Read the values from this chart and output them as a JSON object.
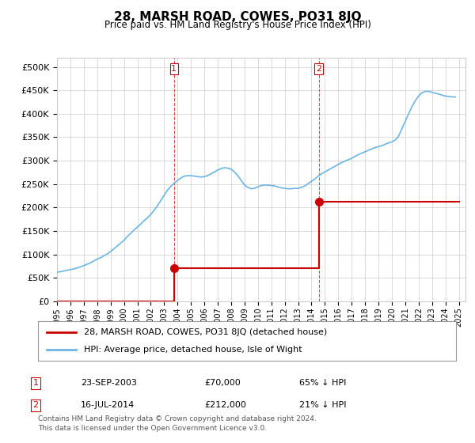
{
  "title": "28, MARSH ROAD, COWES, PO31 8JQ",
  "subtitle": "Price paid vs. HM Land Registry's House Price Index (HPI)",
  "yticks": [
    0,
    50000,
    100000,
    150000,
    200000,
    250000,
    300000,
    350000,
    400000,
    450000,
    500000
  ],
  "ylim": [
    0,
    520000
  ],
  "xlim_start": 1995.0,
  "xlim_end": 2025.5,
  "transaction1_date": 2003.73,
  "transaction1_price": 70000,
  "transaction1_label": "1",
  "transaction1_date_str": "23-SEP-2003",
  "transaction1_price_str": "£70,000",
  "transaction1_pct_str": "65% ↓ HPI",
  "transaction2_date": 2014.54,
  "transaction2_price": 212000,
  "transaction2_label": "2",
  "transaction2_date_str": "16-JUL-2014",
  "transaction2_price_str": "£212,000",
  "transaction2_pct_str": "21% ↓ HPI",
  "hpi_color": "#6cb4e4",
  "price_color": "#cc0000",
  "vline_color": "#cc0000",
  "background_color": "#ffffff",
  "grid_color": "#cccccc",
  "legend_label_price": "28, MARSH ROAD, COWES, PO31 8JQ (detached house)",
  "legend_label_hpi": "HPI: Average price, detached house, Isle of Wight",
  "footer_text": "Contains HM Land Registry data © Crown copyright and database right 2024.\nThis data is licensed under the Open Government Licence v3.0.",
  "hpi_x": [
    1995.0,
    1995.25,
    1995.5,
    1995.75,
    1996.0,
    1996.25,
    1996.5,
    1996.75,
    1997.0,
    1997.25,
    1997.5,
    1997.75,
    1998.0,
    1998.25,
    1998.5,
    1998.75,
    1999.0,
    1999.25,
    1999.5,
    1999.75,
    2000.0,
    2000.25,
    2000.5,
    2000.75,
    2001.0,
    2001.25,
    2001.5,
    2001.75,
    2002.0,
    2002.25,
    2002.5,
    2002.75,
    2003.0,
    2003.25,
    2003.5,
    2003.75,
    2004.0,
    2004.25,
    2004.5,
    2004.75,
    2005.0,
    2005.25,
    2005.5,
    2005.75,
    2006.0,
    2006.25,
    2006.5,
    2006.75,
    2007.0,
    2007.25,
    2007.5,
    2007.75,
    2008.0,
    2008.25,
    2008.5,
    2008.75,
    2009.0,
    2009.25,
    2009.5,
    2009.75,
    2010.0,
    2010.25,
    2010.5,
    2010.75,
    2011.0,
    2011.25,
    2011.5,
    2011.75,
    2012.0,
    2012.25,
    2012.5,
    2012.75,
    2013.0,
    2013.25,
    2013.5,
    2013.75,
    2014.0,
    2014.25,
    2014.5,
    2014.75,
    2015.0,
    2015.25,
    2015.5,
    2015.75,
    2016.0,
    2016.25,
    2016.5,
    2016.75,
    2017.0,
    2017.25,
    2017.5,
    2017.75,
    2018.0,
    2018.25,
    2018.5,
    2018.75,
    2019.0,
    2019.25,
    2019.5,
    2019.75,
    2020.0,
    2020.25,
    2020.5,
    2020.75,
    2021.0,
    2021.25,
    2021.5,
    2021.75,
    2022.0,
    2022.25,
    2022.5,
    2022.75,
    2023.0,
    2023.25,
    2023.5,
    2023.75,
    2024.0,
    2024.25,
    2024.5,
    2024.75
  ],
  "hpi_y": [
    62000,
    63000,
    64500,
    66000,
    67500,
    69000,
    71000,
    73500,
    76000,
    79000,
    82000,
    86000,
    90000,
    93000,
    97000,
    101000,
    106000,
    112000,
    118000,
    124000,
    130000,
    138000,
    145000,
    152000,
    158000,
    165000,
    172000,
    178000,
    185000,
    194000,
    204000,
    215000,
    226000,
    237000,
    245000,
    252000,
    258000,
    263000,
    267000,
    268000,
    268000,
    267000,
    266000,
    265000,
    266000,
    268000,
    272000,
    276000,
    280000,
    283000,
    285000,
    284000,
    282000,
    276000,
    268000,
    258000,
    248000,
    243000,
    240000,
    241000,
    244000,
    247000,
    248000,
    248000,
    247000,
    246000,
    244000,
    242000,
    241000,
    240000,
    240000,
    241000,
    241000,
    243000,
    246000,
    251000,
    256000,
    261000,
    267000,
    272000,
    276000,
    280000,
    284000,
    288000,
    292000,
    296000,
    299000,
    302000,
    305000,
    309000,
    313000,
    316000,
    319000,
    322000,
    325000,
    328000,
    330000,
    332000,
    335000,
    338000,
    340000,
    344000,
    352000,
    368000,
    384000,
    400000,
    415000,
    428000,
    438000,
    445000,
    448000,
    448000,
    446000,
    444000,
    442000,
    440000,
    438000,
    437000,
    436000,
    436000
  ],
  "price_x_raw": [
    1995.0,
    2003.73,
    2003.73,
    2014.54,
    2014.54,
    2025.0
  ],
  "price_y_raw": [
    0,
    0,
    70000,
    70000,
    212000,
    212000
  ]
}
